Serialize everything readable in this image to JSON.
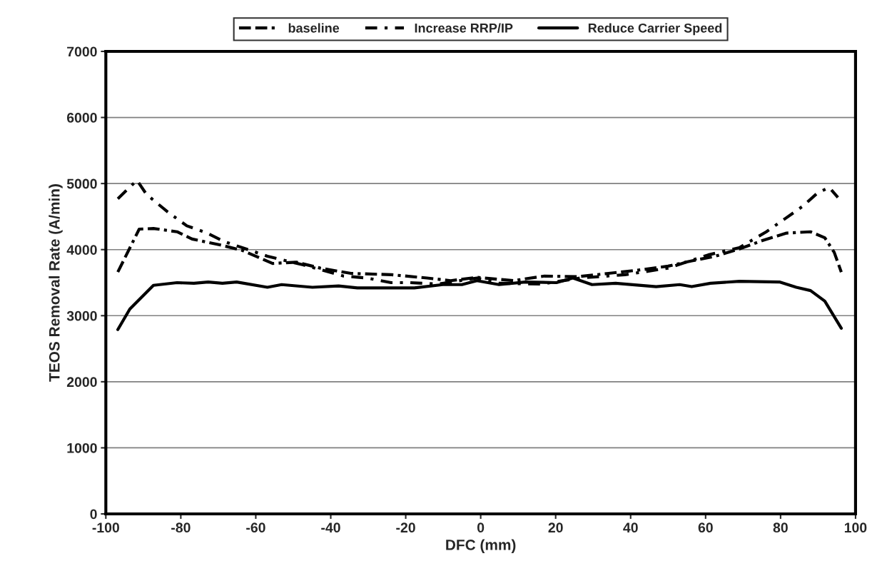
{
  "chart_data": {
    "type": "line",
    "xlabel": "DFC (mm)",
    "ylabel": "TEOS Removal Rate (A/min)",
    "xlim": [
      -100,
      100
    ],
    "xticks": [
      -100,
      -80,
      -60,
      -40,
      -20,
      0,
      20,
      40,
      60,
      80,
      100
    ],
    "ylim": [
      0,
      7000
    ],
    "yticks": [
      0,
      1000,
      2000,
      3000,
      4000,
      5000,
      6000,
      7000
    ],
    "grid": "y",
    "legend": "top",
    "marker": "none",
    "series": [
      {
        "name": "baseline",
        "color": "#000000",
        "line_style": "dashed",
        "x": [
          -96.8,
          -91.1,
          -87.3,
          -81,
          -77,
          -69.4,
          -63.7,
          -55.5,
          -49.2,
          -42.8,
          -34.6,
          -23.8,
          -14.3,
          -8,
          -1,
          8.7,
          17,
          25.9,
          34.1,
          43.6,
          50,
          56.3,
          62.6,
          69,
          75.3,
          81.6,
          88,
          91.8,
          94.3,
          96.2
        ],
        "values": [
          3660,
          4310,
          4320,
          4270,
          4160,
          4070,
          3990,
          3790,
          3810,
          3720,
          3640,
          3620,
          3570,
          3530,
          3580,
          3530,
          3600,
          3590,
          3640,
          3700,
          3750,
          3830,
          3900,
          4010,
          4140,
          4250,
          4270,
          4180,
          3960,
          3660
        ]
      },
      {
        "name": "Increase RRP/IP",
        "color": "#000000",
        "line_style": "dashdot",
        "x": [
          -96.8,
          -91.7,
          -89.2,
          -86.7,
          -83.5,
          -78.4,
          -73.4,
          -68.3,
          -62.6,
          -56.9,
          -47.4,
          -36.6,
          -30.3,
          -23.9,
          -18.9,
          -11.3,
          -1,
          4.9,
          16.3,
          26.5,
          38.5,
          50,
          60.7,
          69,
          76.2,
          81,
          86,
          89.9,
          93,
          95.3
        ],
        "values": [
          4770,
          5050,
          4840,
          4720,
          4570,
          4360,
          4260,
          4120,
          4010,
          3900,
          3770,
          3600,
          3570,
          3500,
          3500,
          3480,
          3570,
          3490,
          3480,
          3570,
          3620,
          3720,
          3920,
          4030,
          4270,
          4460,
          4660,
          4860,
          4940,
          4790
        ]
      },
      {
        "name": "Reduce Carrier Speed",
        "color": "#000000",
        "line_style": "solid",
        "x": [
          -96.8,
          -93.6,
          -87.3,
          -81,
          -76.5,
          -72.7,
          -68.9,
          -65.1,
          -56.9,
          -53.1,
          -44.9,
          -37.9,
          -32.9,
          -17.7,
          -10.1,
          -5,
          -1,
          4.9,
          11.9,
          20.2,
          24.6,
          29.7,
          36,
          46.8,
          53.1,
          56.3,
          61.3,
          69,
          79.7,
          84.2,
          88,
          91.8,
          96.2
        ],
        "values": [
          2790,
          3100,
          3460,
          3500,
          3490,
          3510,
          3490,
          3510,
          3430,
          3470,
          3430,
          3450,
          3420,
          3420,
          3470,
          3470,
          3530,
          3470,
          3510,
          3500,
          3570,
          3470,
          3490,
          3440,
          3470,
          3440,
          3490,
          3520,
          3510,
          3430,
          3380,
          3220,
          2810
        ]
      }
    ]
  }
}
